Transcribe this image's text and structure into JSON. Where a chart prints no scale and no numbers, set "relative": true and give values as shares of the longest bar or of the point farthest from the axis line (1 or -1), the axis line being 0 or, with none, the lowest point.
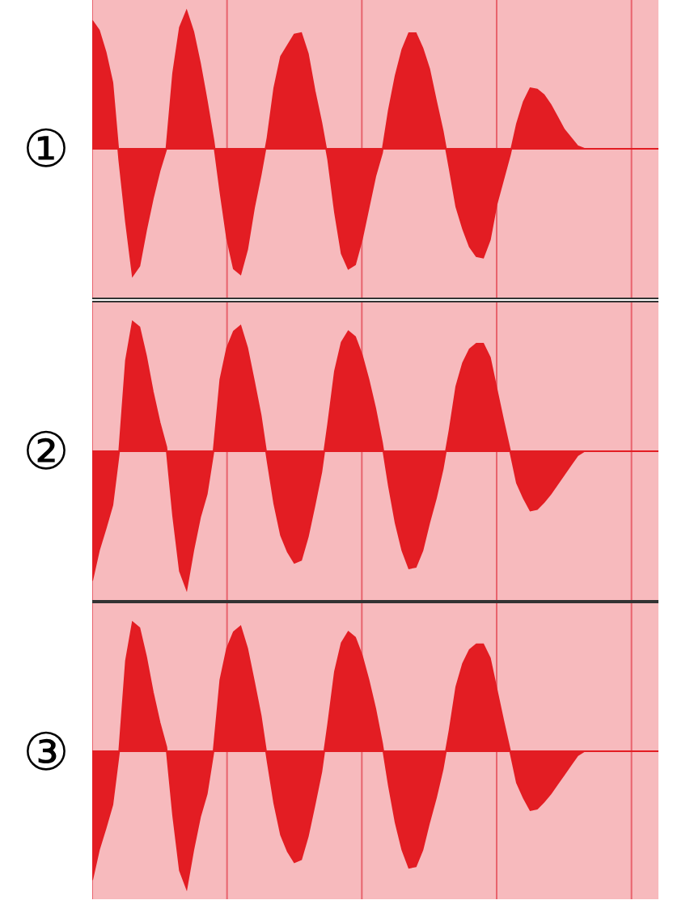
{
  "chart_data": [
    {
      "type": "area",
      "ylabel": "①",
      "relative": true,
      "color": "#e31d23",
      "grid": "x",
      "tick_labels": false,
      "ref_lines": [
        {
          "axis": "y",
          "value": 0,
          "color": "#e31d23"
        }
      ],
      "categories": [
        null,
        null,
        null,
        null,
        null,
        null,
        null,
        null,
        null,
        null,
        null,
        null,
        null,
        null,
        null,
        null,
        null,
        null,
        null,
        null,
        null,
        null,
        null,
        null,
        null,
        null,
        null,
        null,
        null,
        null,
        null,
        null,
        null,
        null,
        null,
        null,
        null,
        null,
        null,
        null,
        null,
        null,
        null,
        null,
        null,
        null,
        null,
        null,
        null,
        null,
        null,
        null,
        null,
        null,
        null,
        null,
        null,
        null,
        null,
        null,
        null,
        null,
        null,
        null,
        null,
        null,
        null,
        null,
        null,
        null,
        null,
        null,
        null,
        null,
        null,
        null,
        null,
        null,
        null,
        null,
        null,
        null,
        null,
        null,
        null
      ],
      "values": [
        0.93,
        0.86,
        0.7,
        0.48,
        -0.08,
        -0.53,
        -0.92,
        -0.85,
        -0.59,
        -0.36,
        -0.16,
        0,
        0.55,
        0.88,
        1,
        0.85,
        0.62,
        0.35,
        0.06,
        -0.31,
        -0.65,
        -0.87,
        -0.91,
        -0.73,
        -0.43,
        -0.19,
        0.08,
        0.44,
        0.67,
        0.75,
        0.83,
        0.84,
        0.69,
        0.42,
        0.19,
        -0.08,
        -0.46,
        -0.76,
        -0.87,
        -0.84,
        -0.66,
        -0.43,
        -0.2,
        -0.03,
        0.28,
        0.53,
        0.72,
        0.84,
        0.84,
        0.73,
        0.58,
        0.35,
        0.13,
        -0.14,
        -0.42,
        -0.58,
        -0.71,
        -0.78,
        -0.79,
        -0.66,
        -0.4,
        -0.22,
        -0.04,
        0.18,
        0.34,
        0.44,
        0.43,
        0.39,
        0.32,
        0.23,
        0.14,
        0.08,
        0.02,
        0,
        0,
        0,
        0,
        0,
        0,
        0,
        0,
        0,
        0,
        0,
        0
      ]
    },
    {
      "type": "area",
      "ylabel": "②",
      "relative": true,
      "color": "#e31d23",
      "grid": "x",
      "tick_labels": false,
      "ref_lines": [
        {
          "axis": "y",
          "value": 0,
          "color": "#e31d23"
        }
      ],
      "categories": [
        null,
        null,
        null,
        null,
        null,
        null,
        null,
        null,
        null,
        null,
        null,
        null,
        null,
        null,
        null,
        null,
        null,
        null,
        null,
        null,
        null,
        null,
        null,
        null,
        null,
        null,
        null,
        null,
        null,
        null,
        null,
        null,
        null,
        null,
        null,
        null,
        null,
        null,
        null,
        null,
        null,
        null,
        null,
        null,
        null,
        null,
        null,
        null,
        null,
        null,
        null,
        null,
        null,
        null,
        null,
        null,
        null,
        null,
        null,
        null,
        null,
        null,
        null,
        null,
        null,
        null,
        null,
        null,
        null,
        null,
        null,
        null,
        null,
        null,
        null,
        null,
        null,
        null,
        null,
        null,
        null,
        null,
        null,
        null,
        null
      ],
      "values": [
        -0.94,
        -0.72,
        -0.56,
        -0.39,
        0,
        0.66,
        0.94,
        0.9,
        0.69,
        0.43,
        0.21,
        0.03,
        -0.47,
        -0.87,
        -1,
        -0.72,
        -0.48,
        -0.31,
        0,
        0.52,
        0.75,
        0.87,
        0.91,
        0.75,
        0.51,
        0.26,
        -0.07,
        -0.38,
        -0.61,
        -0.73,
        -0.81,
        -0.79,
        -0.62,
        -0.39,
        -0.15,
        0.2,
        0.58,
        0.79,
        0.87,
        0.83,
        0.7,
        0.52,
        0.31,
        0.06,
        -0.25,
        -0.52,
        -0.72,
        -0.85,
        -0.84,
        -0.72,
        -0.52,
        -0.34,
        -0.13,
        0.15,
        0.47,
        0.64,
        0.74,
        0.78,
        0.78,
        0.68,
        0.45,
        0.22,
        0,
        -0.23,
        -0.34,
        -0.43,
        -0.42,
        -0.37,
        -0.31,
        -0.24,
        -0.17,
        -0.1,
        -0.03,
        0,
        0,
        0,
        0,
        0,
        0,
        0,
        0,
        0,
        0,
        0,
        0
      ]
    },
    {
      "type": "area",
      "ylabel": "③",
      "relative": true,
      "color": "#e31d23",
      "grid": "x",
      "tick_labels": false,
      "ref_lines": [
        {
          "axis": "y",
          "value": 0,
          "color": "#e31d23"
        }
      ],
      "categories": [
        null,
        null,
        null,
        null,
        null,
        null,
        null,
        null,
        null,
        null,
        null,
        null,
        null,
        null,
        null,
        null,
        null,
        null,
        null,
        null,
        null,
        null,
        null,
        null,
        null,
        null,
        null,
        null,
        null,
        null,
        null,
        null,
        null,
        null,
        null,
        null,
        null,
        null,
        null,
        null,
        null,
        null,
        null,
        null,
        null,
        null,
        null,
        null,
        null,
        null,
        null,
        null,
        null,
        null,
        null,
        null,
        null,
        null,
        null,
        null,
        null,
        null,
        null,
        null,
        null,
        null,
        null,
        null,
        null,
        null,
        null,
        null,
        null,
        null,
        null,
        null,
        null,
        null,
        null,
        null,
        null,
        null,
        null,
        null,
        null
      ],
      "values": [
        -0.94,
        -0.72,
        -0.56,
        -0.39,
        0,
        0.66,
        0.94,
        0.9,
        0.69,
        0.43,
        0.21,
        0.03,
        -0.47,
        -0.87,
        -1,
        -0.72,
        -0.48,
        -0.31,
        0,
        0.52,
        0.75,
        0.87,
        0.91,
        0.75,
        0.51,
        0.26,
        -0.07,
        -0.38,
        -0.61,
        -0.73,
        -0.81,
        -0.79,
        -0.62,
        -0.39,
        -0.15,
        0.2,
        0.58,
        0.79,
        0.87,
        0.83,
        0.7,
        0.52,
        0.31,
        0.06,
        -0.25,
        -0.52,
        -0.72,
        -0.85,
        -0.84,
        -0.72,
        -0.52,
        -0.34,
        -0.13,
        0.15,
        0.47,
        0.64,
        0.74,
        0.78,
        0.78,
        0.68,
        0.45,
        0.22,
        0,
        -0.23,
        -0.34,
        -0.43,
        -0.42,
        -0.37,
        -0.31,
        -0.24,
        -0.17,
        -0.1,
        -0.03,
        0,
        0,
        0,
        0,
        0,
        0,
        0,
        0,
        0,
        0,
        0,
        0
      ]
    }
  ]
}
